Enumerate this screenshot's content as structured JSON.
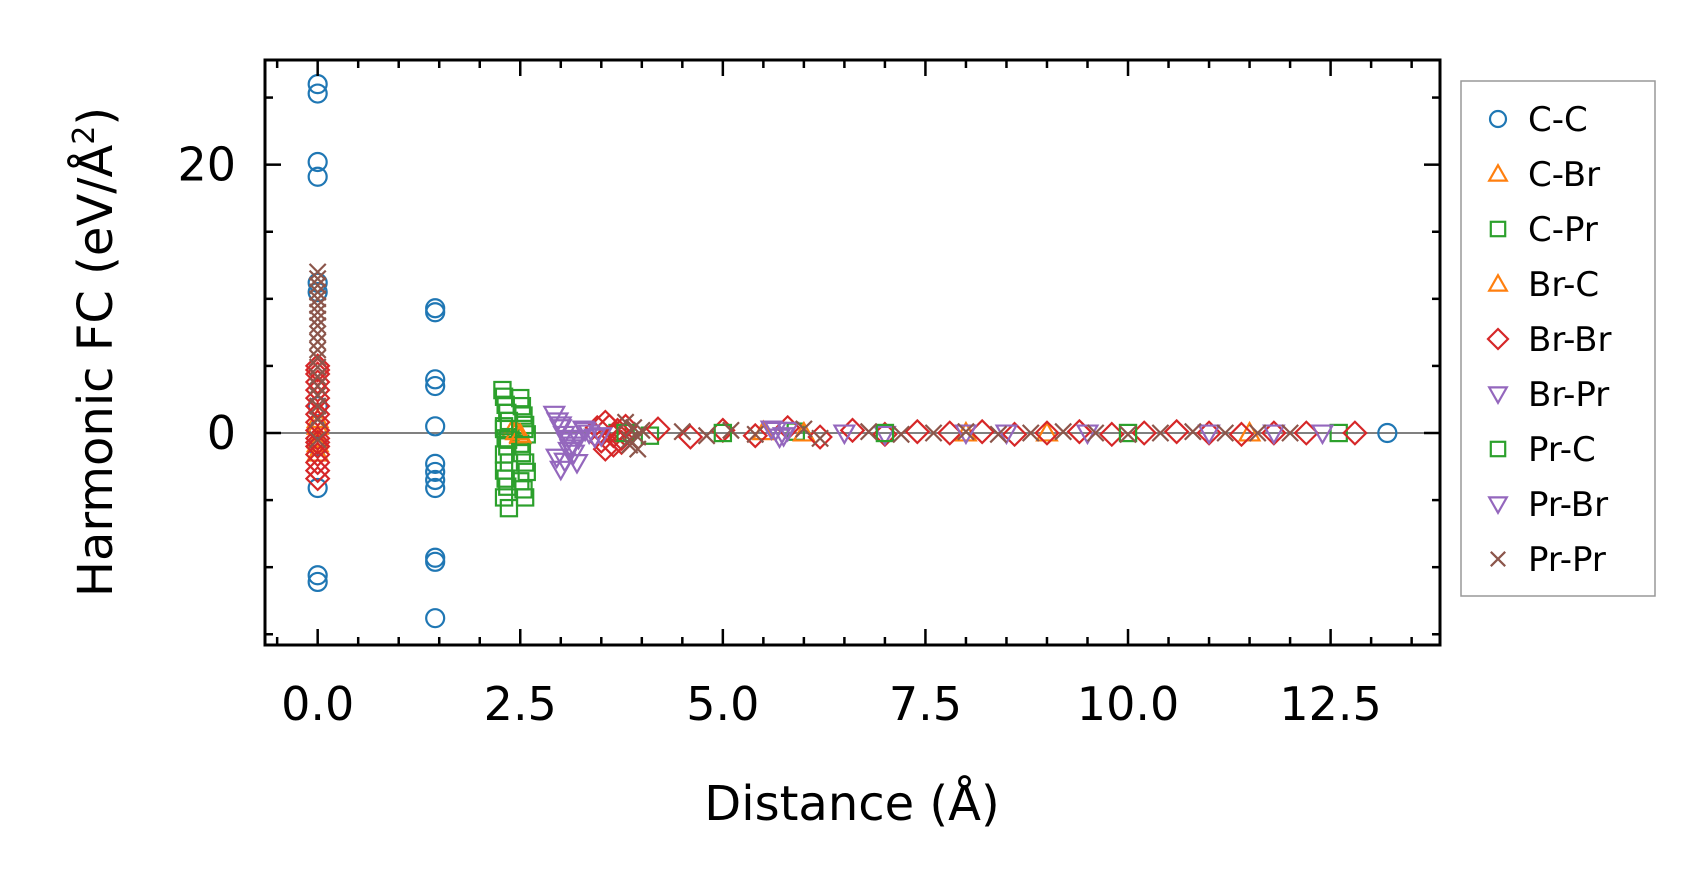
{
  "chart_data": {
    "type": "scatter",
    "title": "",
    "xlabel": "Distance (Å)",
    "ylabel_main": "Harmonic FC (eV/Å",
    "ylabel_sup": "2",
    "ylabel_close": ")",
    "xlim": [
      -0.65,
      13.85
    ],
    "ylim": [
      -15.8,
      27.8
    ],
    "xticks": [
      0.0,
      2.5,
      5.0,
      7.5,
      10.0,
      12.5
    ],
    "xtick_labels": [
      "0.0",
      "2.5",
      "5.0",
      "7.5",
      "10.0",
      "12.5"
    ],
    "yticks": [
      0,
      20
    ],
    "ytick_labels": [
      "0",
      "20"
    ],
    "zero_line": true,
    "legend_position": "right-outside",
    "series": [
      {
        "name": "C-C",
        "marker": "circle",
        "color": "#1f77b4",
        "x": [
          0,
          0,
          0,
          0,
          0,
          0,
          0,
          0,
          0,
          0,
          0,
          0,
          1.45,
          1.45,
          1.45,
          1.45,
          1.45,
          1.45,
          1.45,
          1.45,
          1.45,
          1.45,
          1.45,
          1.45,
          13.2
        ],
        "y": [
          26.0,
          25.3,
          20.2,
          19.1,
          11.2,
          10.5,
          2.0,
          0.3,
          -1.0,
          -4.1,
          -10.6,
          -11.1,
          9.3,
          9.0,
          4.0,
          3.5,
          -2.3,
          -2.9,
          -3.5,
          -4.1,
          -9.3,
          -9.6,
          -13.8,
          0.5,
          0.0
        ]
      },
      {
        "name": "C-Br",
        "marker": "triangle-up",
        "color": "#ff7f0e",
        "x": [
          0,
          0,
          0,
          2.4,
          2.5,
          5.5,
          8.0,
          11.5
        ],
        "y": [
          1.0,
          -0.5,
          -1.5,
          0.2,
          -0.2,
          0.1,
          0.0,
          0.0
        ]
      },
      {
        "name": "C-Pr",
        "marker": "square",
        "color": "#2ca02c",
        "x": [
          2.28,
          2.3,
          2.32,
          2.34,
          2.36,
          2.3,
          2.32,
          2.34,
          2.3,
          2.36,
          2.3,
          2.32,
          2.34,
          2.3,
          2.36,
          2.5,
          2.52,
          2.54,
          2.56,
          2.58,
          2.5,
          2.52,
          2.56,
          2.58,
          2.5,
          2.54,
          2.56,
          3.7,
          4.1,
          5.9,
          12.6
        ],
        "y": [
          3.2,
          2.7,
          2.1,
          1.5,
          0.9,
          0.3,
          -0.4,
          -1.0,
          -1.6,
          -2.2,
          -2.8,
          -3.4,
          -4.0,
          -4.8,
          -5.6,
          2.6,
          2.0,
          1.3,
          0.6,
          -0.1,
          -0.8,
          -1.5,
          -2.2,
          -2.9,
          -3.6,
          -4.2,
          -4.8,
          0.0,
          -0.2,
          0.1,
          0.0
        ]
      },
      {
        "name": "Br-C",
        "marker": "triangle-up",
        "color": "#ff7f0e",
        "x": [
          0,
          0,
          2.45,
          2.5,
          6.0,
          9.0
        ],
        "y": [
          0.5,
          -0.8,
          0.1,
          -0.1,
          0.0,
          0.0
        ]
      },
      {
        "name": "Br-Br",
        "marker": "diamond",
        "color": "#d62728",
        "x": [
          0,
          0,
          0,
          0,
          0,
          0,
          0,
          0,
          0,
          0,
          0,
          0,
          0,
          0,
          0,
          0,
          0,
          3.45,
          3.5,
          3.55,
          3.6,
          3.65,
          3.7,
          3.75,
          3.8,
          3.55,
          3.65,
          3.75,
          4.2,
          4.6,
          5.0,
          5.4,
          5.8,
          6.2,
          6.6,
          7.0,
          7.4,
          7.8,
          8.2,
          8.6,
          9.0,
          9.4,
          9.8,
          10.2,
          10.6,
          11.0,
          11.4,
          11.8,
          12.2,
          12.8
        ],
        "y": [
          5.0,
          4.4,
          3.8,
          3.2,
          2.6,
          2.0,
          1.4,
          0.8,
          0.2,
          -0.4,
          -1.0,
          -1.6,
          -2.2,
          -2.8,
          -3.4,
          4.7,
          -0.7,
          0.4,
          -0.6,
          -1.2,
          0.5,
          -0.9,
          0.2,
          -0.4,
          0.5,
          0.8,
          -0.2,
          -0.7,
          0.3,
          -0.3,
          0.2,
          -0.2,
          0.4,
          -0.3,
          0.2,
          -0.1,
          0.1,
          0.0,
          0.1,
          -0.1,
          0.0,
          0.1,
          -0.1,
          0.0,
          0.1,
          0.0,
          -0.1,
          0.0,
          0.0,
          0.0
        ]
      },
      {
        "name": "Br-Pr",
        "marker": "triangle-down",
        "color": "#9467bd",
        "x": [
          2.92,
          2.96,
          3.0,
          3.04,
          3.08,
          3.12,
          3.16,
          3.2,
          2.95,
          3.0,
          3.05,
          3.1,
          3.15,
          3.22,
          3.28,
          3.35,
          3.42,
          5.6,
          5.7,
          5.8,
          6.5,
          7.0,
          8.0,
          9.5,
          11.0,
          12.4
        ],
        "y": [
          1.4,
          0.9,
          0.4,
          -0.1,
          -0.6,
          -1.1,
          -1.5,
          -2.2,
          -1.8,
          -2.7,
          -2.1,
          -1.3,
          -0.9,
          -0.4,
          0.3,
          0.0,
          -0.3,
          0.3,
          -0.3,
          0.2,
          0.0,
          -0.1,
          0.0,
          0.0,
          0.0,
          0.0
        ]
      },
      {
        "name": "Pr-C",
        "marker": "square",
        "color": "#2ca02c",
        "x": [
          2.3,
          2.35,
          2.55,
          3.8,
          5.0,
          7.0,
          10.0
        ],
        "y": [
          0.5,
          -0.5,
          0.3,
          0.0,
          0.0,
          0.0,
          0.0
        ]
      },
      {
        "name": "Pr-Br",
        "marker": "triangle-down",
        "color": "#9467bd",
        "x": [
          3.0,
          3.1,
          3.3,
          3.5,
          5.65,
          5.75,
          8.5,
          11.8
        ],
        "y": [
          0.6,
          -0.4,
          0.2,
          -0.2,
          0.2,
          -0.2,
          0.0,
          0.0
        ]
      },
      {
        "name": "Pr-Pr",
        "marker": "x",
        "color": "#8c564b",
        "x": [
          0,
          0,
          0,
          0,
          0,
          0,
          0,
          0,
          0,
          0,
          0,
          0,
          0,
          0,
          0,
          0,
          0,
          0,
          0,
          0,
          3.8,
          3.85,
          3.9,
          3.95,
          4.0,
          3.85,
          3.95,
          4.5,
          4.8,
          5.1,
          5.4,
          6.0,
          6.2,
          6.8,
          7.2,
          7.6,
          8.0,
          8.4,
          8.8,
          9.2,
          9.6,
          10.0,
          10.4,
          10.8,
          11.2,
          11.6,
          12.0
        ],
        "y": [
          12.0,
          11.5,
          11.0,
          10.5,
          10.0,
          9.5,
          9.0,
          8.5,
          8.0,
          7.4,
          6.8,
          6.2,
          5.6,
          4.9,
          4.2,
          3.5,
          2.8,
          2.0,
          1.0,
          -0.5,
          0.8,
          -0.9,
          0.4,
          -1.2,
          0.2,
          -0.5,
          -0.3,
          0.1,
          -0.2,
          0.2,
          -0.1,
          0.3,
          -0.4,
          0.1,
          -0.1,
          0.0,
          0.1,
          -0.1,
          0.0,
          0.1,
          0.0,
          -0.1,
          0.0,
          0.1,
          0.0,
          0.0,
          0.0
        ]
      }
    ]
  }
}
